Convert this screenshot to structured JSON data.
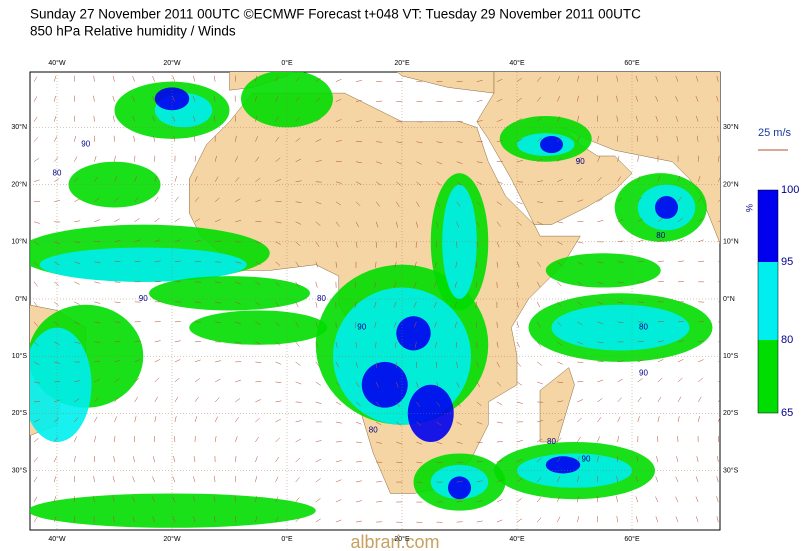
{
  "header": {
    "line1": "Sunday 27 November 2011 00UTC ©ECMWF Forecast t+048 VT: Tuesday 29 November 2011 00UTC",
    "line2": "850 hPa Relative humidity / Winds"
  },
  "map": {
    "lon_ticks": [
      {
        "value": -40,
        "label": "40°W"
      },
      {
        "value": -20,
        "label": "20°W"
      },
      {
        "value": 0,
        "label": "0°E"
      },
      {
        "value": 20,
        "label": "20°E"
      },
      {
        "value": 40,
        "label": "40°E"
      },
      {
        "value": 60,
        "label": "60°E"
      }
    ],
    "lat_ticks": [
      {
        "value": 30,
        "label": "30°N"
      },
      {
        "value": 20,
        "label": "20°N"
      },
      {
        "value": 10,
        "label": "10°N"
      },
      {
        "value": 0,
        "label": "0°N"
      },
      {
        "value": -10,
        "label": "10°S"
      },
      {
        "value": -20,
        "label": "20°S"
      },
      {
        "value": -30,
        "label": "30°S"
      }
    ],
    "contour_labels": [
      "90",
      "80",
      "90",
      "80",
      "90",
      "80",
      "90",
      "80",
      "90",
      "80",
      "80",
      "90"
    ]
  },
  "legend": {
    "unit": "%",
    "levels": [
      "65",
      "80",
      "95",
      "100"
    ],
    "wind_scale": "25 m/s"
  },
  "watermark": "albrari.com"
}
